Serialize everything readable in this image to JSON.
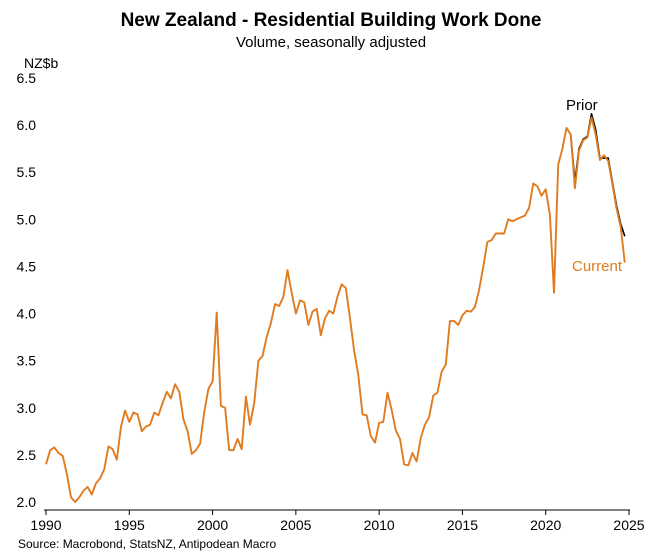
{
  "chart_data": {
    "type": "line",
    "title": "New Zealand - Residential Building Work Done",
    "subtitle": "Volume, seasonally adjusted",
    "ylabel": "NZ$b",
    "source": "Source: Macrobond, StatsNZ, Antipodean Macro",
    "xlim": [
      1990,
      2025
    ],
    "ylim": [
      2.0,
      6.5
    ],
    "x_ticks": [
      1990,
      1995,
      2000,
      2005,
      2010,
      2015,
      2020,
      2025
    ],
    "y_ticks": [
      2.0,
      2.5,
      3.0,
      3.5,
      4.0,
      4.5,
      5.0,
      5.5,
      6.0,
      6.5
    ],
    "y_tick_labels": [
      "2.0",
      "2.5",
      "3.0",
      "3.5",
      "4.0",
      "4.5",
      "5.0",
      "5.5",
      "6.0",
      "6.5"
    ],
    "grid": false,
    "colors": {
      "current": "#e07b20",
      "prior": "#000000"
    },
    "series": [
      {
        "name": "Prior",
        "color": "#000000",
        "points": [
          [
            2021.5,
            5.9
          ],
          [
            2021.75,
            5.4
          ],
          [
            2022.0,
            5.75
          ],
          [
            2022.25,
            5.85
          ],
          [
            2022.5,
            5.88
          ],
          [
            2022.75,
            6.12
          ],
          [
            2023.0,
            5.95
          ],
          [
            2023.25,
            5.65
          ],
          [
            2023.5,
            5.65
          ],
          [
            2023.75,
            5.65
          ],
          [
            2024.0,
            5.4
          ],
          [
            2024.25,
            5.15
          ],
          [
            2024.5,
            4.95
          ],
          [
            2024.75,
            4.82
          ]
        ]
      },
      {
        "name": "Current",
        "color": "#e07b20",
        "points": [
          [
            1990.0,
            2.4
          ],
          [
            1990.25,
            2.55
          ],
          [
            1990.5,
            2.58
          ],
          [
            1990.75,
            2.52
          ],
          [
            1991.0,
            2.49
          ],
          [
            1991.25,
            2.3
          ],
          [
            1991.5,
            2.05
          ],
          [
            1991.75,
            2.0
          ],
          [
            1992.0,
            2.05
          ],
          [
            1992.25,
            2.12
          ],
          [
            1992.5,
            2.16
          ],
          [
            1992.75,
            2.08
          ],
          [
            1993.0,
            2.2
          ],
          [
            1993.25,
            2.25
          ],
          [
            1993.5,
            2.35
          ],
          [
            1993.75,
            2.59
          ],
          [
            1994.0,
            2.56
          ],
          [
            1994.25,
            2.45
          ],
          [
            1994.5,
            2.8
          ],
          [
            1994.75,
            2.97
          ],
          [
            1995.0,
            2.85
          ],
          [
            1995.25,
            2.95
          ],
          [
            1995.5,
            2.93
          ],
          [
            1995.75,
            2.75
          ],
          [
            1996.0,
            2.8
          ],
          [
            1996.25,
            2.82
          ],
          [
            1996.5,
            2.95
          ],
          [
            1996.75,
            2.92
          ],
          [
            1997.0,
            3.05
          ],
          [
            1997.25,
            3.17
          ],
          [
            1997.5,
            3.1
          ],
          [
            1997.75,
            3.25
          ],
          [
            1998.0,
            3.17
          ],
          [
            1998.25,
            2.88
          ],
          [
            1998.5,
            2.75
          ],
          [
            1998.75,
            2.51
          ],
          [
            1999.0,
            2.55
          ],
          [
            1999.25,
            2.62
          ],
          [
            1999.5,
            2.95
          ],
          [
            1999.75,
            3.2
          ],
          [
            2000.0,
            3.28
          ],
          [
            2000.25,
            4.01
          ],
          [
            2000.5,
            3.02
          ],
          [
            2000.75,
            3.0
          ],
          [
            2001.0,
            2.55
          ],
          [
            2001.25,
            2.55
          ],
          [
            2001.5,
            2.67
          ],
          [
            2001.75,
            2.56
          ],
          [
            2002.0,
            3.12
          ],
          [
            2002.25,
            2.82
          ],
          [
            2002.5,
            3.05
          ],
          [
            2002.75,
            3.5
          ],
          [
            2003.0,
            3.55
          ],
          [
            2003.25,
            3.75
          ],
          [
            2003.5,
            3.9
          ],
          [
            2003.75,
            4.1
          ],
          [
            2004.0,
            4.08
          ],
          [
            2004.25,
            4.18
          ],
          [
            2004.5,
            4.46
          ],
          [
            2004.75,
            4.22
          ],
          [
            2005.0,
            4.0
          ],
          [
            2005.25,
            4.14
          ],
          [
            2005.5,
            4.12
          ],
          [
            2005.75,
            3.88
          ],
          [
            2006.0,
            4.02
          ],
          [
            2006.25,
            4.05
          ],
          [
            2006.5,
            3.77
          ],
          [
            2006.75,
            3.95
          ],
          [
            2007.0,
            4.03
          ],
          [
            2007.25,
            4.0
          ],
          [
            2007.5,
            4.18
          ],
          [
            2007.75,
            4.31
          ],
          [
            2008.0,
            4.27
          ],
          [
            2008.25,
            3.95
          ],
          [
            2008.5,
            3.6
          ],
          [
            2008.75,
            3.35
          ],
          [
            2009.0,
            2.93
          ],
          [
            2009.25,
            2.92
          ],
          [
            2009.5,
            2.7
          ],
          [
            2009.75,
            2.63
          ],
          [
            2010.0,
            2.84
          ],
          [
            2010.25,
            2.85
          ],
          [
            2010.5,
            3.16
          ],
          [
            2010.75,
            2.98
          ],
          [
            2011.0,
            2.76
          ],
          [
            2011.25,
            2.67
          ],
          [
            2011.5,
            2.4
          ],
          [
            2011.75,
            2.39
          ],
          [
            2012.0,
            2.52
          ],
          [
            2012.25,
            2.43
          ],
          [
            2012.5,
            2.68
          ],
          [
            2012.75,
            2.82
          ],
          [
            2013.0,
            2.9
          ],
          [
            2013.25,
            3.13
          ],
          [
            2013.5,
            3.16
          ],
          [
            2013.75,
            3.38
          ],
          [
            2014.0,
            3.46
          ],
          [
            2014.25,
            3.92
          ],
          [
            2014.5,
            3.92
          ],
          [
            2014.75,
            3.88
          ],
          [
            2015.0,
            3.98
          ],
          [
            2015.25,
            4.03
          ],
          [
            2015.5,
            4.02
          ],
          [
            2015.75,
            4.07
          ],
          [
            2016.0,
            4.25
          ],
          [
            2016.25,
            4.5
          ],
          [
            2016.5,
            4.76
          ],
          [
            2016.75,
            4.78
          ],
          [
            2017.0,
            4.85
          ],
          [
            2017.25,
            4.85
          ],
          [
            2017.5,
            4.85
          ],
          [
            2017.75,
            5.0
          ],
          [
            2018.0,
            4.98
          ],
          [
            2018.25,
            5.0
          ],
          [
            2018.5,
            5.02
          ],
          [
            2018.75,
            5.04
          ],
          [
            2019.0,
            5.12
          ],
          [
            2019.25,
            5.38
          ],
          [
            2019.5,
            5.35
          ],
          [
            2019.75,
            5.25
          ],
          [
            2020.0,
            5.32
          ],
          [
            2020.25,
            5.05
          ],
          [
            2020.5,
            4.22
          ],
          [
            2020.75,
            5.58
          ],
          [
            2021.0,
            5.75
          ],
          [
            2021.25,
            5.97
          ],
          [
            2021.5,
            5.9
          ],
          [
            2021.75,
            5.33
          ],
          [
            2022.0,
            5.73
          ],
          [
            2022.25,
            5.84
          ],
          [
            2022.5,
            5.87
          ],
          [
            2022.75,
            6.08
          ],
          [
            2023.0,
            5.9
          ],
          [
            2023.25,
            5.63
          ],
          [
            2023.5,
            5.68
          ],
          [
            2023.75,
            5.62
          ],
          [
            2024.0,
            5.38
          ],
          [
            2024.25,
            5.12
          ],
          [
            2024.5,
            4.92
          ],
          [
            2024.75,
            4.54
          ]
        ]
      }
    ]
  }
}
